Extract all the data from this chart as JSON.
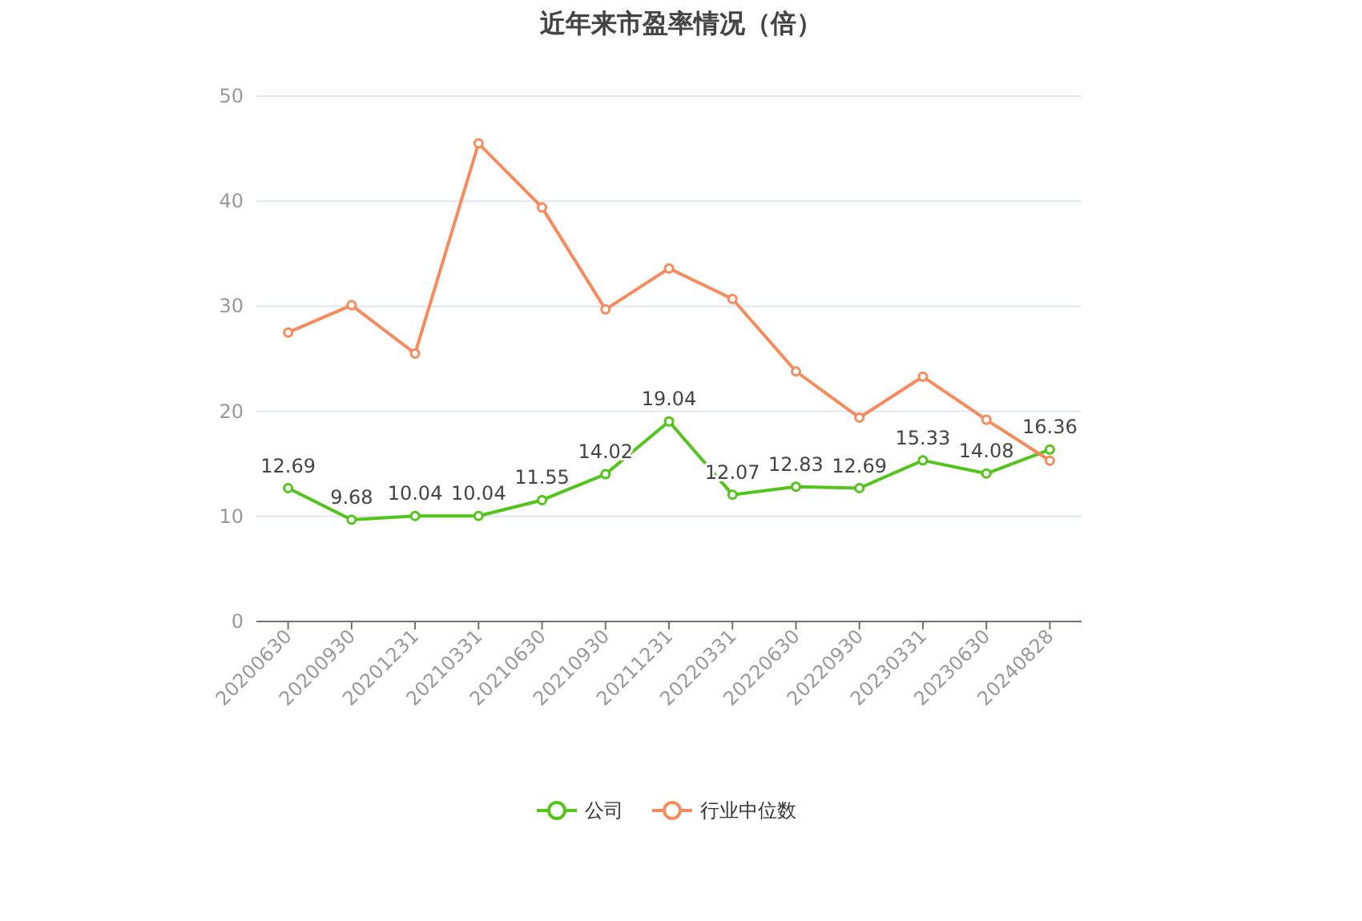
{
  "chart_data": {
    "type": "line",
    "title": "近年来市盈率情况（倍）",
    "categories": [
      "20200630",
      "20200930",
      "20201231",
      "20210331",
      "20210630",
      "20210930",
      "20211231",
      "20220331",
      "20220630",
      "20220930",
      "20230331",
      "20230630",
      "20240828"
    ],
    "series": [
      {
        "name": "公司",
        "color": "#52c41a",
        "values": [
          12.69,
          9.68,
          10.04,
          10.04,
          11.55,
          14.02,
          19.04,
          12.07,
          12.83,
          12.69,
          15.33,
          14.08,
          16.36
        ],
        "value_labels": [
          "12.69",
          "9.68",
          "10.04",
          "10.04",
          "11.55",
          "14.02",
          "19.04",
          "12.07",
          "12.83",
          "12.69",
          "15.33",
          "14.08",
          "16.36"
        ]
      },
      {
        "name": "行业中位数",
        "color": "#f78b5d",
        "values": [
          27.5,
          30.1,
          25.5,
          45.5,
          39.4,
          29.7,
          33.6,
          30.7,
          23.8,
          19.4,
          23.3,
          19.2,
          15.3
        ]
      }
    ],
    "ylim": [
      0,
      50
    ],
    "yticks": [
      0,
      10,
      20,
      30,
      40,
      50
    ],
    "grid": "y",
    "legend": "bottom",
    "marker": "circle",
    "line_style": "solid"
  }
}
